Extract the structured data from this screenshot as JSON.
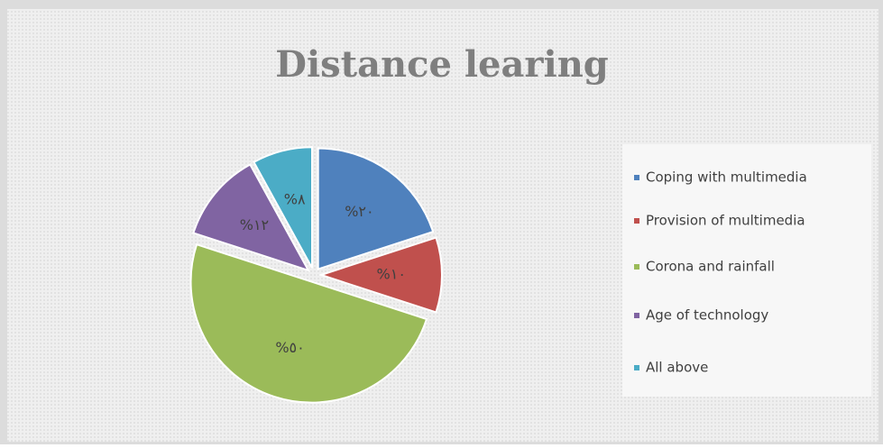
{
  "chart_data": {
    "type": "pie",
    "title": "Distance learing",
    "categories": [
      "Coping with multimedia",
      "Provision of multimedia",
      "Corona and rainfall",
      "Age of technology",
      "All above"
    ],
    "values": [
      20,
      10,
      50,
      12,
      8
    ],
    "value_labels": [
      "%٢٠",
      "%١٠",
      "%٥٠",
      "%١٢",
      "%٨"
    ],
    "colors": [
      "#4f81bd",
      "#c0504d",
      "#9bbb59",
      "#8064a2",
      "#4bacc6"
    ],
    "legend": "right"
  }
}
